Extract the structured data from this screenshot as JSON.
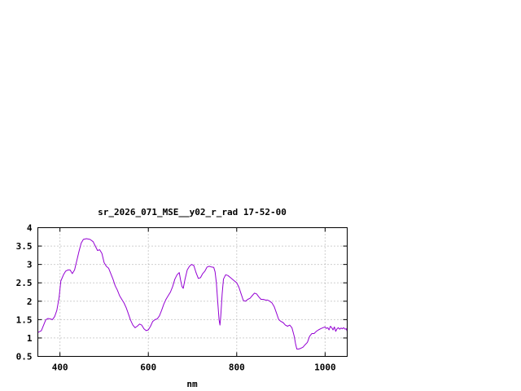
{
  "chart_data": {
    "type": "line",
    "title": "sr_2026_071_MSE__y02_r_rad 17-52-00",
    "xlabel": "nm",
    "ylabel": "",
    "xlim": [
      350,
      1050
    ],
    "ylim": [
      0.5,
      4
    ],
    "x_ticks": [
      400,
      600,
      800,
      1000
    ],
    "y_ticks": [
      0.5,
      1,
      1.5,
      2,
      2.5,
      3,
      3.5,
      4
    ],
    "x_tick_labels": [
      "400",
      "600",
      "800",
      "1000"
    ],
    "y_tick_labels": [
      "0.5",
      "1",
      "1.5",
      "2",
      "2.5",
      "3",
      "3.5",
      "4"
    ],
    "grid": true,
    "legend": "none",
    "series": [
      {
        "color": "#9400d3",
        "points": [
          [
            350,
            1.15
          ],
          [
            358,
            1.2
          ],
          [
            363,
            1.35
          ],
          [
            368,
            1.5
          ],
          [
            373,
            1.53
          ],
          [
            378,
            1.52
          ],
          [
            383,
            1.5
          ],
          [
            388,
            1.58
          ],
          [
            393,
            1.75
          ],
          [
            398,
            2.1
          ],
          [
            402,
            2.55
          ],
          [
            408,
            2.72
          ],
          [
            413,
            2.82
          ],
          [
            418,
            2.85
          ],
          [
            423,
            2.85
          ],
          [
            428,
            2.75
          ],
          [
            433,
            2.85
          ],
          [
            438,
            3.1
          ],
          [
            443,
            3.35
          ],
          [
            448,
            3.58
          ],
          [
            453,
            3.68
          ],
          [
            460,
            3.7
          ],
          [
            468,
            3.68
          ],
          [
            475,
            3.62
          ],
          [
            480,
            3.5
          ],
          [
            485,
            3.38
          ],
          [
            490,
            3.4
          ],
          [
            495,
            3.3
          ],
          [
            500,
            3.05
          ],
          [
            505,
            2.95
          ],
          [
            510,
            2.9
          ],
          [
            515,
            2.75
          ],
          [
            520,
            2.6
          ],
          [
            525,
            2.42
          ],
          [
            530,
            2.3
          ],
          [
            535,
            2.15
          ],
          [
            540,
            2.05
          ],
          [
            545,
            1.95
          ],
          [
            550,
            1.82
          ],
          [
            555,
            1.65
          ],
          [
            560,
            1.48
          ],
          [
            565,
            1.35
          ],
          [
            570,
            1.28
          ],
          [
            575,
            1.32
          ],
          [
            580,
            1.38
          ],
          [
            585,
            1.35
          ],
          [
            590,
            1.25
          ],
          [
            595,
            1.2
          ],
          [
            600,
            1.22
          ],
          [
            605,
            1.32
          ],
          [
            610,
            1.45
          ],
          [
            615,
            1.5
          ],
          [
            620,
            1.52
          ],
          [
            625,
            1.6
          ],
          [
            630,
            1.75
          ],
          [
            635,
            1.92
          ],
          [
            640,
            2.05
          ],
          [
            645,
            2.15
          ],
          [
            650,
            2.25
          ],
          [
            655,
            2.4
          ],
          [
            660,
            2.6
          ],
          [
            665,
            2.72
          ],
          [
            670,
            2.78
          ],
          [
            673,
            2.58
          ],
          [
            676,
            2.4
          ],
          [
            679,
            2.35
          ],
          [
            683,
            2.6
          ],
          [
            688,
            2.85
          ],
          [
            693,
            2.95
          ],
          [
            698,
            3.0
          ],
          [
            703,
            2.97
          ],
          [
            708,
            2.78
          ],
          [
            713,
            2.62
          ],
          [
            718,
            2.64
          ],
          [
            723,
            2.75
          ],
          [
            728,
            2.82
          ],
          [
            733,
            2.93
          ],
          [
            738,
            2.95
          ],
          [
            743,
            2.93
          ],
          [
            748,
            2.92
          ],
          [
            751,
            2.8
          ],
          [
            754,
            2.5
          ],
          [
            757,
            2.0
          ],
          [
            760,
            1.5
          ],
          [
            762,
            1.35
          ],
          [
            764,
            1.6
          ],
          [
            767,
            2.2
          ],
          [
            770,
            2.6
          ],
          [
            775,
            2.72
          ],
          [
            780,
            2.7
          ],
          [
            785,
            2.65
          ],
          [
            790,
            2.6
          ],
          [
            795,
            2.55
          ],
          [
            800,
            2.5
          ],
          [
            805,
            2.38
          ],
          [
            810,
            2.2
          ],
          [
            815,
            2.02
          ],
          [
            820,
            2.0
          ],
          [
            825,
            2.05
          ],
          [
            830,
            2.08
          ],
          [
            835,
            2.15
          ],
          [
            840,
            2.22
          ],
          [
            845,
            2.2
          ],
          [
            850,
            2.12
          ],
          [
            855,
            2.05
          ],
          [
            860,
            2.05
          ],
          [
            865,
            2.03
          ],
          [
            870,
            2.03
          ],
          [
            875,
            2.0
          ],
          [
            880,
            1.95
          ],
          [
            885,
            1.85
          ],
          [
            890,
            1.68
          ],
          [
            895,
            1.5
          ],
          [
            900,
            1.45
          ],
          [
            905,
            1.42
          ],
          [
            910,
            1.35
          ],
          [
            915,
            1.32
          ],
          [
            920,
            1.35
          ],
          [
            925,
            1.28
          ],
          [
            930,
            1.05
          ],
          [
            933,
            0.85
          ],
          [
            936,
            0.7
          ],
          [
            940,
            0.7
          ],
          [
            945,
            0.72
          ],
          [
            950,
            0.75
          ],
          [
            955,
            0.82
          ],
          [
            960,
            0.88
          ],
          [
            965,
            1.05
          ],
          [
            970,
            1.12
          ],
          [
            975,
            1.12
          ],
          [
            980,
            1.18
          ],
          [
            985,
            1.22
          ],
          [
            990,
            1.25
          ],
          [
            995,
            1.28
          ],
          [
            1000,
            1.3
          ],
          [
            1003,
            1.26
          ],
          [
            1006,
            1.28
          ],
          [
            1009,
            1.22
          ],
          [
            1012,
            1.32
          ],
          [
            1015,
            1.28
          ],
          [
            1018,
            1.22
          ],
          [
            1021,
            1.3
          ],
          [
            1024,
            1.18
          ],
          [
            1027,
            1.25
          ],
          [
            1030,
            1.28
          ],
          [
            1033,
            1.24
          ],
          [
            1036,
            1.27
          ],
          [
            1039,
            1.25
          ],
          [
            1042,
            1.28
          ],
          [
            1045,
            1.24
          ],
          [
            1048,
            1.25
          ],
          [
            1050,
            1.18
          ]
        ]
      }
    ]
  }
}
